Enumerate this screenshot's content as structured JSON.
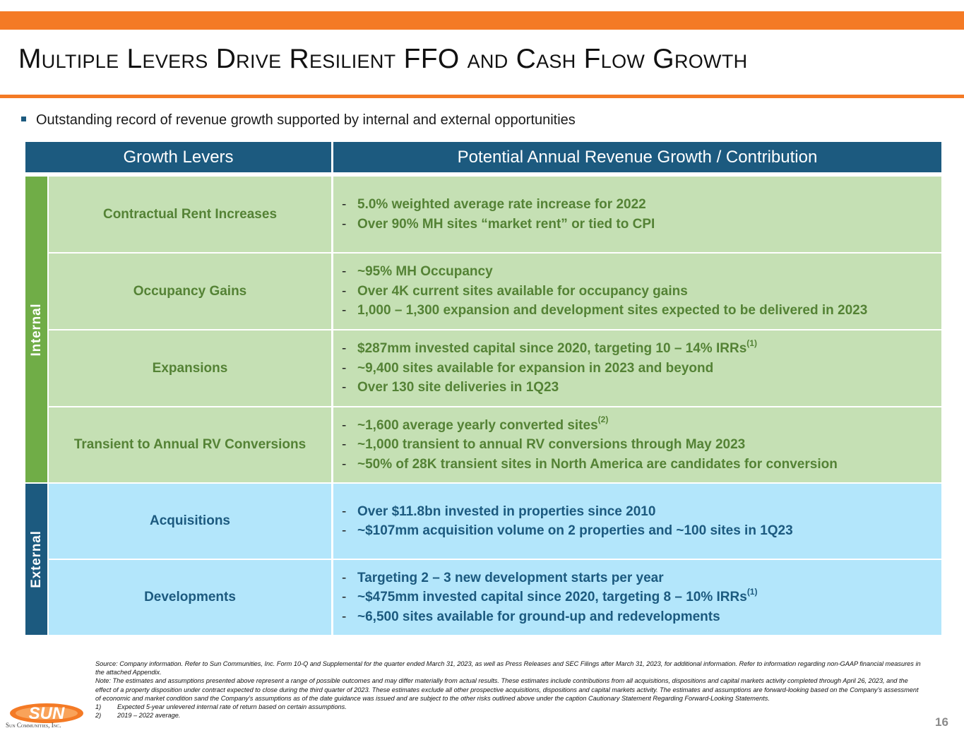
{
  "title": "Multiple Levers Drive Resilient FFO and Cash Flow Growth",
  "intro_bullet": "Outstanding record of revenue growth supported by internal and external opportunities",
  "table": {
    "header_left": "Growth Levers",
    "header_right": "Potential Annual Revenue Growth / Contribution",
    "group_internal": "Internal",
    "group_external": "External",
    "dash": "-",
    "rows": [
      {
        "lever": "Contractual Rent Increases",
        "items": [
          {
            "text": "5.0% weighted average rate increase for 2022",
            "sup": ""
          },
          {
            "text": "Over 90% MH sites “market rent” or tied to CPI",
            "sup": ""
          }
        ]
      },
      {
        "lever": "Occupancy Gains",
        "items": [
          {
            "text": "~95% MH Occupancy",
            "sup": ""
          },
          {
            "text": "Over 4K current sites available for occupancy gains",
            "sup": ""
          },
          {
            "text": "1,000 – 1,300 expansion and development sites expected to be delivered in 2023",
            "sup": ""
          }
        ]
      },
      {
        "lever": "Expansions",
        "items": [
          {
            "text": "$287mm invested capital since 2020, targeting 10 – 14% IRRs",
            "sup": "(1)"
          },
          {
            "text": "~9,400 sites available for expansion in 2023 and beyond",
            "sup": ""
          },
          {
            "text": "Over 130 site deliveries in 1Q23",
            "sup": ""
          }
        ]
      },
      {
        "lever": "Transient to Annual RV Conversions",
        "items": [
          {
            "text": "~1,600 average yearly converted sites",
            "sup": "(2)"
          },
          {
            "text": "~1,000 transient to annual RV conversions through May 2023",
            "sup": ""
          },
          {
            "text": "~50% of 28K transient sites in North America are candidates for conversion",
            "sup": ""
          }
        ]
      },
      {
        "lever": "Acquisitions",
        "items": [
          {
            "text": "Over $11.8bn invested in properties since 2010",
            "sup": ""
          },
          {
            "text": "~$107mm acquisition volume on 2 properties and ~100 sites in 1Q23",
            "sup": ""
          }
        ]
      },
      {
        "lever": "Developments",
        "items": [
          {
            "text": "Targeting 2 – 3 new development starts per year",
            "sup": ""
          },
          {
            "text": "~$475mm invested capital since 2020, targeting 8 – 10% IRRs",
            "sup": "(1)"
          },
          {
            "text": "~6,500 sites available for ground-up and redevelopments",
            "sup": ""
          }
        ]
      }
    ]
  },
  "footnotes": {
    "source": "Source: Company information. Refer to Sun Communities, Inc. Form 10-Q and Supplemental for the quarter ended March 31, 2023, as well as Press Releases and SEC Filings after March 31, 2023, for additional information. Refer to information regarding non-GAAP financial measures in the attached Appendix.",
    "note": "Note: The estimates and assumptions presented above represent a range of possible outcomes and may differ materially from actual results. These estimates include contributions from all acquisitions, dispositions and capital markets activity completed through April 26, 2023, and the effect of a property disposition under contract expected to close during the third quarter of 2023. These estimates exclude all other prospective acquisitions, dispositions and capital markets activity. The estimates and assumptions are forward-looking based on the Company’s assessment of economic and market condition sand the Company’s assumptions  as of the date guidance was issued and are subject to the other risks outlined above under the caption Cautionary Statement Regarding Forward-Looking Statements.",
    "items": [
      {
        "num": "1)",
        "text": "Expected 5-year unlevered internal rate of return based on certain assumptions."
      },
      {
        "num": "2)",
        "text": "2019 – 2022 average."
      }
    ]
  },
  "logo": {
    "mark": "SUN",
    "wordmark": "Sun Communities, Inc."
  },
  "page_number": "16",
  "colors": {
    "accent_orange": "#f47a25",
    "header_blue": "#1c5a7f",
    "internal_green": "#70ad47",
    "green_cell": "#c5e0b4",
    "blue_cell": "#b3e6fb"
  }
}
